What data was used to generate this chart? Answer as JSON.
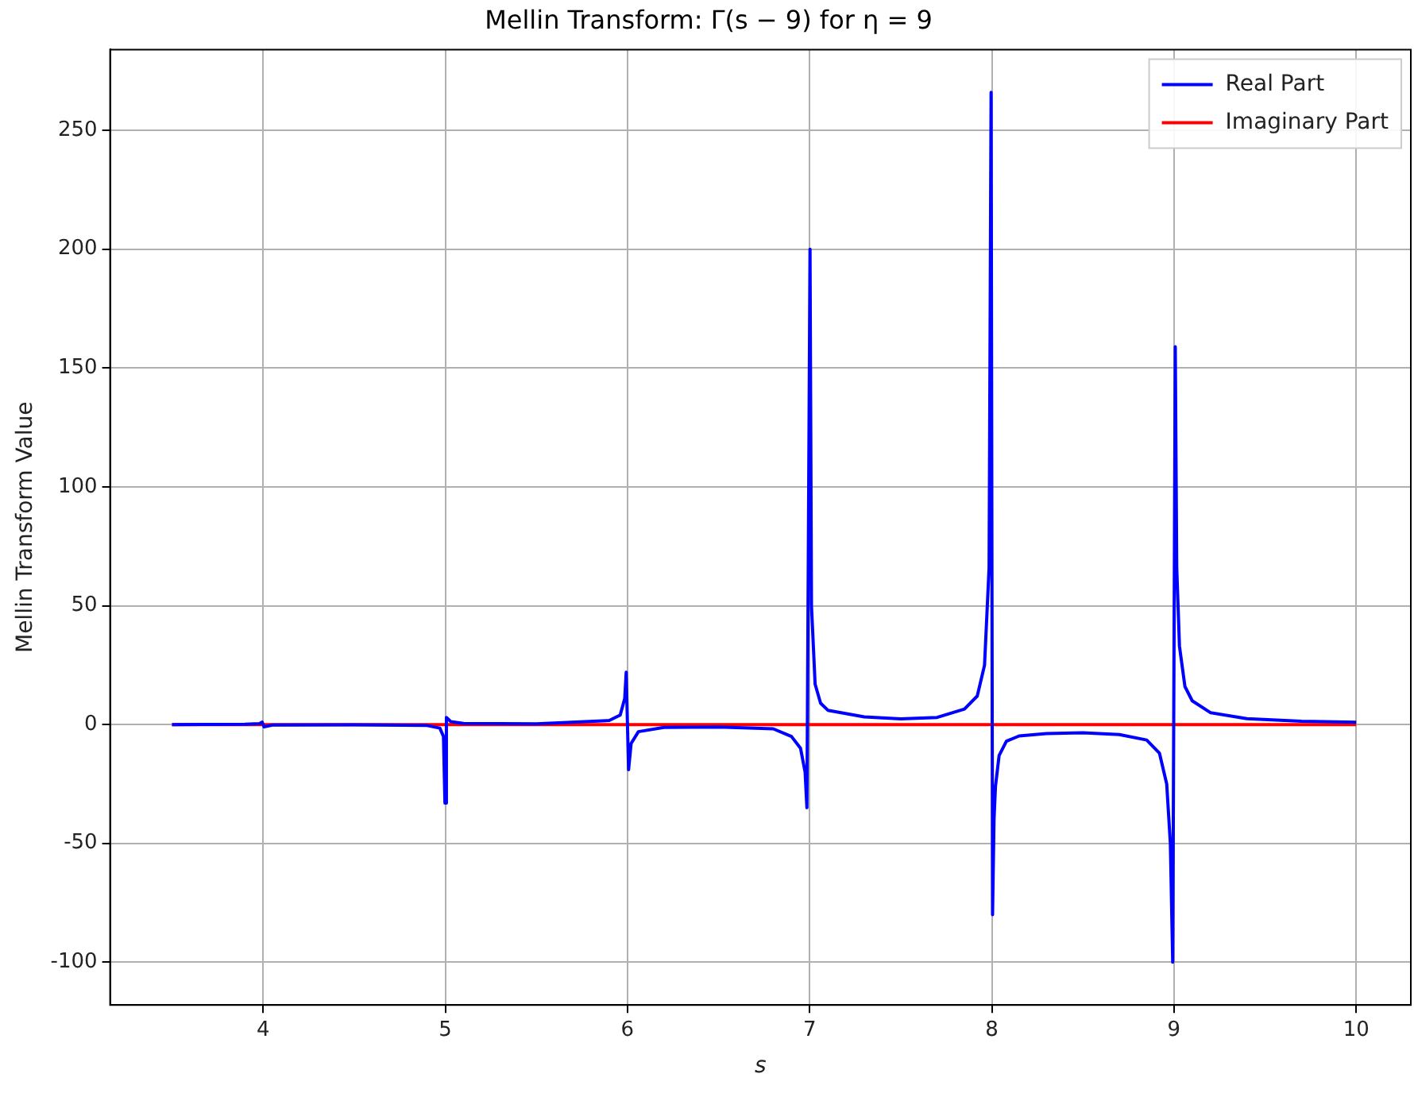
{
  "chart_data": {
    "type": "line",
    "title": "Mellin Transform: Γ(s − 9) for η = 9",
    "xlabel": "s",
    "ylabel": "Mellin Transform Value",
    "xlim": [
      3.16,
      10.3
    ],
    "xticks": [
      4,
      5,
      6,
      7,
      8,
      9,
      10
    ],
    "ylim": [
      -118,
      284
    ],
    "yticks": [
      -100,
      -50,
      0,
      50,
      100,
      150,
      200,
      250
    ],
    "grid": true,
    "legend": "top right",
    "marker": "none",
    "line_style": "solid",
    "series": [
      {
        "name": "Real Part",
        "color": "#0000ff",
        "x": [
          3.5,
          3.9,
          3.98,
          3.995,
          4.005,
          4.05,
          4.5,
          4.9,
          4.97,
          4.99,
          4.998,
          5.006,
          5.03,
          5.1,
          5.5,
          5.9,
          5.96,
          5.985,
          5.993,
          6.006,
          6.02,
          6.06,
          6.2,
          6.5,
          6.8,
          6.9,
          6.95,
          6.975,
          6.985,
          7.002,
          7.01,
          7.03,
          7.06,
          7.1,
          7.3,
          7.5,
          7.7,
          7.85,
          7.92,
          7.96,
          7.985,
          7.996,
          8.004,
          8.012,
          8.02,
          8.04,
          8.08,
          8.15,
          8.3,
          8.5,
          8.7,
          8.85,
          8.92,
          8.96,
          8.98,
          8.993,
          9.007,
          9.015,
          9.03,
          9.06,
          9.1,
          9.2,
          9.4,
          9.7,
          10.0
        ],
        "values": [
          0.0,
          0.1,
          0.4,
          1.0,
          -1.0,
          -0.2,
          -0.1,
          -0.4,
          -1.5,
          -5,
          -33,
          3,
          1.2,
          0.5,
          0.3,
          1.7,
          4,
          11,
          22,
          -19,
          -8,
          -3,
          -1.2,
          -1.0,
          -1.8,
          -5,
          -10,
          -20,
          -35,
          200,
          50,
          17,
          9,
          6,
          3.2,
          2.4,
          3,
          6.5,
          12,
          25,
          66,
          266,
          -80,
          -40,
          -26,
          -13,
          -7,
          -4.8,
          -3.8,
          -3.5,
          -4.2,
          -6.5,
          -12,
          -25,
          -50,
          -100,
          159,
          66,
          33,
          16,
          10,
          5,
          2.5,
          1.4,
          1.0
        ]
      },
      {
        "name": "Imaginary Part",
        "color": "#ff0000",
        "x": [
          3.5,
          10.0
        ],
        "values": [
          0,
          0
        ]
      }
    ]
  }
}
